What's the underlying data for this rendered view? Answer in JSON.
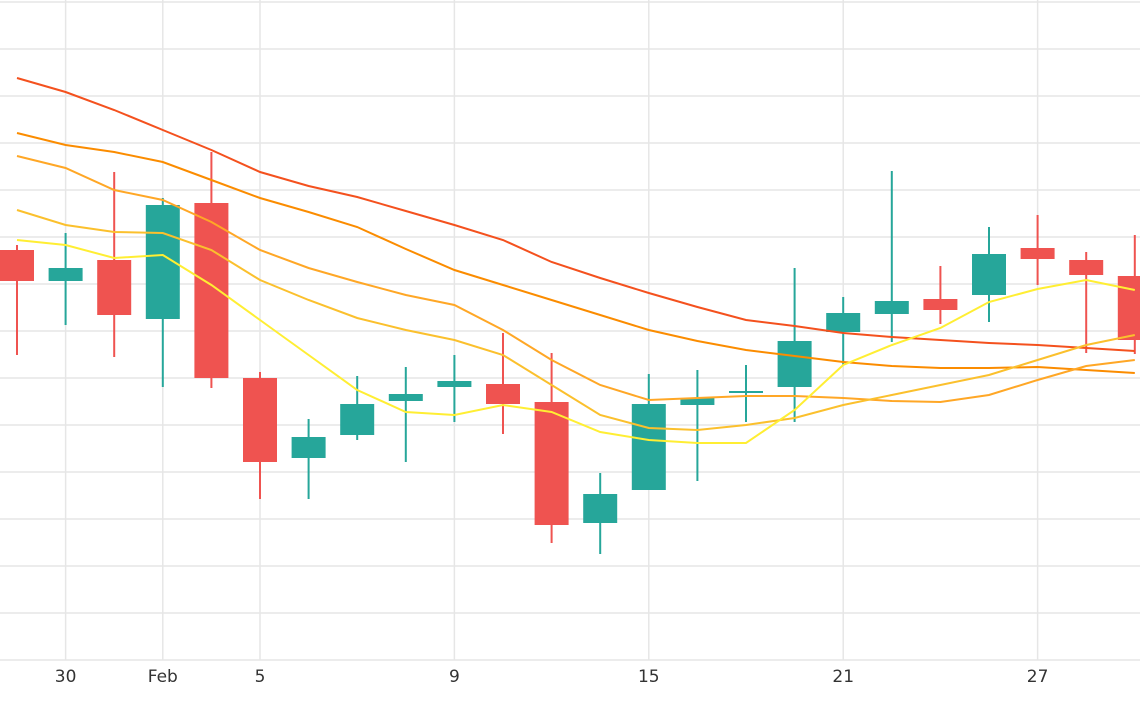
{
  "chart_data": {
    "type": "candlestick",
    "categories": [
      null,
      "30",
      null,
      "Feb",
      null,
      "5",
      null,
      null,
      null,
      "9",
      null,
      null,
      null,
      "15",
      null,
      null,
      null,
      "21",
      null,
      null,
      null,
      "27",
      null,
      null
    ],
    "open": [
      410,
      379,
      400,
      341,
      457,
      282,
      202,
      225,
      259,
      273,
      276,
      258,
      137,
      170,
      255,
      267,
      273,
      328,
      346,
      361,
      365,
      412,
      400,
      384
    ],
    "high": [
      415,
      427,
      488,
      462,
      508,
      288,
      241,
      284,
      293,
      305,
      327,
      307,
      187,
      286,
      290,
      295,
      392,
      363,
      489,
      394,
      433,
      445,
      408,
      425
    ],
    "low": [
      305,
      335,
      303,
      273,
      272,
      161,
      161,
      220,
      198,
      238,
      226,
      117,
      106,
      170,
      179,
      238,
      238,
      295,
      318,
      336,
      338,
      375,
      307,
      306
    ],
    "close": [
      379,
      392,
      345,
      455,
      282,
      198,
      223,
      256,
      266,
      279,
      256,
      135,
      166,
      256,
      262,
      269,
      319,
      347,
      359,
      350,
      406,
      401,
      385,
      320
    ],
    "up_color": "#26a69a",
    "down_color": "#ef5350",
    "series": [
      {
        "color": "#f4511e",
        "values": [
          582,
          568,
          550,
          530,
          510,
          488,
          474,
          463,
          449,
          435,
          420,
          398,
          382,
          367,
          353,
          340,
          334,
          327,
          323,
          320,
          317,
          315,
          312,
          309
        ]
      },
      {
        "color": "#fb8c00",
        "values": [
          527,
          515,
          508,
          498,
          480,
          462,
          448,
          433,
          411,
          390,
          375,
          360,
          345,
          330,
          319,
          310,
          304,
          298,
          294,
          292,
          292,
          293,
          290,
          287
        ]
      },
      {
        "color": "#ffa726",
        "values": [
          504,
          492,
          470,
          460,
          438,
          410,
          392,
          378,
          365,
          355,
          330,
          300,
          275,
          260,
          262,
          264,
          264,
          262,
          259,
          258,
          265,
          280,
          294,
          300
        ]
      },
      {
        "color": "#fbc02d",
        "values": [
          450,
          435,
          428,
          427,
          410,
          380,
          360,
          342,
          330,
          320,
          305,
          275,
          245,
          232,
          230,
          235,
          242,
          255,
          265,
          275,
          285,
          300,
          315,
          325
        ]
      },
      {
        "color": "#ffee33",
        "values": [
          420,
          415,
          402,
          405,
          375,
          340,
          305,
          270,
          248,
          245,
          255,
          248,
          228,
          220,
          217,
          217,
          250,
          295,
          315,
          332,
          358,
          371,
          380,
          370
        ]
      }
    ],
    "ylim": [
      0,
      660
    ],
    "yticks": [
      47,
      94,
      141,
      188,
      235,
      282,
      329,
      376,
      423,
      470,
      517,
      564,
      611,
      658
    ],
    "grid": true
  }
}
